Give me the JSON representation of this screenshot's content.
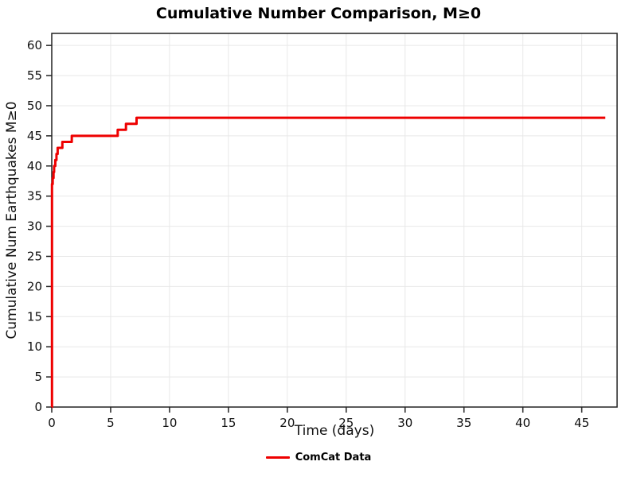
{
  "title": "Cumulative Number Comparison, M≥0",
  "chart_data": {
    "type": "line",
    "title": "Cumulative Number Comparison, M≥0",
    "xlabel": "Time (days)",
    "ylabel": "Cumulative Num Earthquakes M≥0",
    "xlim": [
      0,
      48
    ],
    "ylim": [
      0,
      62
    ],
    "xticks": [
      0,
      5,
      10,
      15,
      20,
      25,
      30,
      35,
      40,
      45
    ],
    "yticks": [
      0,
      5,
      10,
      15,
      20,
      25,
      30,
      35,
      40,
      45,
      50,
      55,
      60
    ],
    "grid": true,
    "grid_color": "#e8e8e8",
    "axis_color": "#222222",
    "legend_position": "bottom",
    "series": [
      {
        "name": "ComCat Data",
        "color": "#ee0000",
        "step": "post",
        "line_width": 3,
        "x": [
          0,
          0.02,
          0.08,
          0.15,
          0.2,
          0.3,
          0.4,
          0.5,
          0.9,
          1.7,
          5.6,
          6.3,
          7.2,
          47
        ],
        "y": [
          0,
          37,
          38,
          39,
          40,
          41,
          42,
          43,
          44,
          45,
          46,
          47,
          48,
          48
        ]
      }
    ]
  }
}
